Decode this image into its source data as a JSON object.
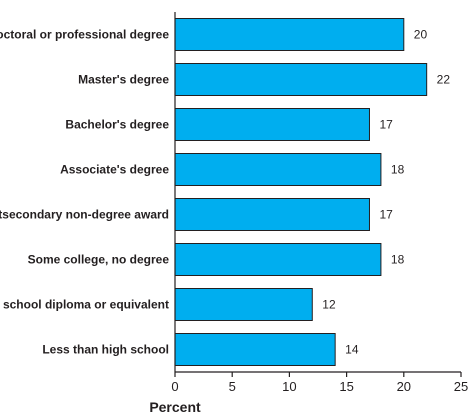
{
  "chart_data": {
    "type": "bar",
    "orientation": "horizontal",
    "categories": [
      "Doctoral or professional degree",
      "Master's degree",
      "Bachelor's degree",
      "Associate's degree",
      "Postsecondary non-degree award",
      "Some college, no degree",
      "High school diploma or equivalent",
      "Less than high school"
    ],
    "values": [
      20,
      22,
      17,
      18,
      17,
      18,
      12,
      14
    ],
    "xlabel": "Percent",
    "ylabel": "",
    "xlim": [
      0,
      25
    ],
    "xticks": [
      "0",
      "5",
      "10",
      "15",
      "20",
      "25"
    ],
    "grid": false,
    "colors": {
      "bar": "#00aeef",
      "bar_stroke": "#231f20",
      "axis": "#231f20"
    }
  }
}
